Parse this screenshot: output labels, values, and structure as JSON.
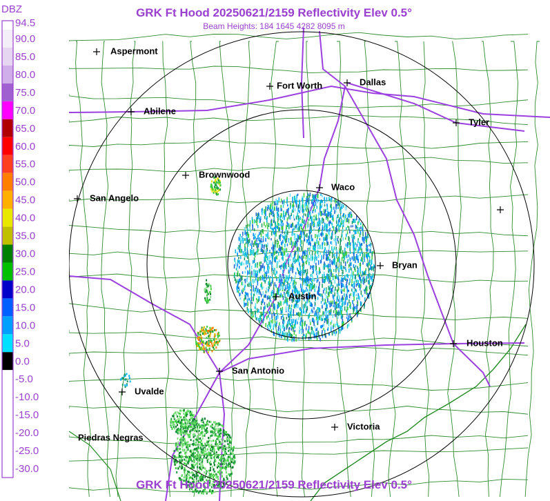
{
  "header": {
    "title": "GRK Ft Hood 20250621/2159 Reflectivity Elev 0.5°",
    "subtitle": "Beam Heights: 184 1645 4282 8095 m",
    "footer": "GRK Ft Hood 20250621/2159 Reflectivity Elev 0.5°"
  },
  "legend": {
    "unit": "DBZ",
    "labels": [
      "94.5",
      "90.0",
      "85.0",
      "80.0",
      "75.0",
      "70.0",
      "65.0",
      "60.0",
      "55.0",
      "50.0",
      "45.0",
      "40.0",
      "35.0",
      "30.0",
      "25.0",
      "20.0",
      "15.0",
      "10.0",
      "5.0",
      "0.0",
      "-5.0",
      "-10.0",
      "-15.0",
      "-20.0",
      "-25.0",
      "-30.0"
    ]
  },
  "cities": [
    {
      "label": "Aspermont"
    },
    {
      "label": "Fort Worth"
    },
    {
      "label": "Dallas"
    },
    {
      "label": "Abilene"
    },
    {
      "label": "Tyler"
    },
    {
      "label": "Brownwood"
    },
    {
      "label": "Waco"
    },
    {
      "label": "San Angelo"
    },
    {
      "label": "Bryan"
    },
    {
      "label": "Austin"
    },
    {
      "label": "Houston"
    },
    {
      "label": "San Antonio"
    },
    {
      "label": "Uvalde"
    },
    {
      "label": "Victoria"
    },
    {
      "label": "Piedras Negras"
    }
  ]
}
